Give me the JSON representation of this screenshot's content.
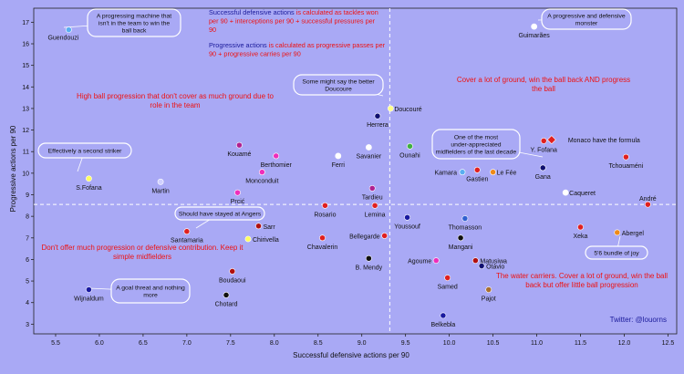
{
  "chart_data": {
    "type": "scatter",
    "title": "",
    "xlabel": "Successful defensive actions per 90",
    "ylabel": "Progressive actions per 90",
    "xlim": [
      5.25,
      12.6
    ],
    "ylim": [
      2.55,
      17.65
    ],
    "xticks": [
      "5.5",
      "6.0",
      "6.5",
      "7.0",
      "7.5",
      "8.0",
      "8.5",
      "9.0",
      "9.5",
      "10.0",
      "10.5",
      "11.0",
      "11.5",
      "12.0",
      "12.5"
    ],
    "yticks": [
      "3",
      "4",
      "5",
      "6",
      "7",
      "8",
      "9",
      "10",
      "11",
      "12",
      "13",
      "14",
      "15",
      "16",
      "17"
    ],
    "reference_lines": {
      "x": 9.32,
      "y": 8.55
    },
    "grid": false,
    "colors": {
      "background": "#a9a9f5",
      "plot_bg": "#a9a9f5",
      "annotation_red": "#ee1111",
      "annotation_navy": "#1a1a9a",
      "marker_edge": "#ffffff"
    },
    "points": [
      {
        "name": "Guendouzi",
        "x": 5.65,
        "y": 16.65,
        "color": "#5aaef0"
      },
      {
        "name": "Guimarães",
        "x": 10.97,
        "y": 16.8,
        "color": "#ffffff"
      },
      {
        "name": "Doucouré",
        "x": 9.33,
        "y": 13.0,
        "color": "#ffff88"
      },
      {
        "name": "Herrera",
        "x": 9.18,
        "y": 12.65,
        "color": "#101070"
      },
      {
        "name": "Kouamé",
        "x": 7.6,
        "y": 11.3,
        "color": "#b02090"
      },
      {
        "name": "Savanier",
        "x": 9.08,
        "y": 11.2,
        "color": "#ffffff"
      },
      {
        "name": "Ounahi",
        "x": 9.55,
        "y": 11.25,
        "color": "#40b040"
      },
      {
        "name": "Monaco have the formula",
        "x": 11.17,
        "y": 11.55,
        "color": "#e02020"
      },
      {
        "name": "Y. Fofana",
        "x": 11.08,
        "y": 11.5,
        "color": "#e02020"
      },
      {
        "name": "Berthomier",
        "x": 8.02,
        "y": 10.8,
        "color": "#ee2ebb"
      },
      {
        "name": "Ferri",
        "x": 8.73,
        "y": 10.8,
        "color": "#ffffff"
      },
      {
        "name": "Tchouaméni",
        "x": 12.02,
        "y": 10.75,
        "color": "#e02020"
      },
      {
        "name": "Monconduit",
        "x": 7.86,
        "y": 10.05,
        "color": "#ee2ebb"
      },
      {
        "name": "Kamara",
        "x": 10.15,
        "y": 10.05,
        "color": "#5aaef0"
      },
      {
        "name": "Gastien",
        "x": 10.32,
        "y": 10.15,
        "color": "#e02020"
      },
      {
        "name": "Le Fée",
        "x": 10.5,
        "y": 10.05,
        "color": "#ee8a1a"
      },
      {
        "name": "Gana",
        "x": 11.07,
        "y": 10.25,
        "color": "#101070"
      },
      {
        "name": "S.Fofana",
        "x": 5.88,
        "y": 9.75,
        "color": "#ffff60"
      },
      {
        "name": "Martin",
        "x": 6.7,
        "y": 9.6,
        "color": "#d0d0ff"
      },
      {
        "name": "Tardieu",
        "x": 9.12,
        "y": 9.3,
        "color": "#b02090"
      },
      {
        "name": "Prcić",
        "x": 7.58,
        "y": 9.1,
        "color": "#ee2ebb"
      },
      {
        "name": "Caqueret",
        "x": 11.33,
        "y": 9.1,
        "color": "#ffffff"
      },
      {
        "name": "André",
        "x": 12.27,
        "y": 8.55,
        "color": "#e02020"
      },
      {
        "name": "Rosario",
        "x": 8.58,
        "y": 8.5,
        "color": "#e02020"
      },
      {
        "name": "Lemina",
        "x": 9.15,
        "y": 8.5,
        "color": "#e02020"
      },
      {
        "name": "Youssouf",
        "x": 9.52,
        "y": 7.95,
        "color": "#1a1aa0"
      },
      {
        "name": "Thomasson",
        "x": 10.18,
        "y": 7.9,
        "color": "#3060d0"
      },
      {
        "name": "Sarr",
        "x": 7.82,
        "y": 7.55,
        "color": "#b01010"
      },
      {
        "name": "Xeka",
        "x": 11.5,
        "y": 7.5,
        "color": "#e02020"
      },
      {
        "name": "Santamaria",
        "x": 7.0,
        "y": 7.3,
        "color": "#e02020"
      },
      {
        "name": "Abergel",
        "x": 11.92,
        "y": 7.25,
        "color": "#ee8a1a"
      },
      {
        "name": "Bellegarde",
        "x": 9.26,
        "y": 7.1,
        "color": "#e02020"
      },
      {
        "name": "Chirivella",
        "x": 7.7,
        "y": 6.95,
        "color": "#ffff60"
      },
      {
        "name": "Chavalerin",
        "x": 8.55,
        "y": 7.0,
        "color": "#e02020"
      },
      {
        "name": "Mangani",
        "x": 10.13,
        "y": 7.0,
        "color": "#101010"
      },
      {
        "name": "B. Mendy",
        "x": 9.08,
        "y": 6.05,
        "color": "#101010"
      },
      {
        "name": "Agoume",
        "x": 9.85,
        "y": 5.95,
        "color": "#ee2ebb"
      },
      {
        "name": "Matusiwa",
        "x": 10.3,
        "y": 5.95,
        "color": "#b01010"
      },
      {
        "name": "Otávio",
        "x": 10.37,
        "y": 5.7,
        "color": "#101070"
      },
      {
        "name": "Boudaoui",
        "x": 7.52,
        "y": 5.45,
        "color": "#b01010"
      },
      {
        "name": "Samed",
        "x": 9.98,
        "y": 5.15,
        "color": "#e02020"
      },
      {
        "name": "Pajot",
        "x": 10.45,
        "y": 4.6,
        "color": "#a87030"
      },
      {
        "name": "Wijnaldum",
        "x": 5.88,
        "y": 4.6,
        "color": "#1a1aa0"
      },
      {
        "name": "Chotard",
        "x": 7.45,
        "y": 4.35,
        "color": "#101010"
      },
      {
        "name": "Belkebla",
        "x": 9.93,
        "y": 3.4,
        "color": "#1a1aa0"
      }
    ],
    "annotations": {
      "definitions": [
        {
          "lead": "Successful defensive actions",
          "rest": " is calculated as tackles won per 90 + interceptions per 90 + successful pressures per 90"
        },
        {
          "lead": "Progressive actions",
          "rest": " is calculated as progressive passes per 90 + progressive carries per 90"
        }
      ],
      "quadrants": [
        {
          "text": "High ball progression that don't cover as much ground due to role in the team"
        },
        {
          "text": "Cover a lot of ground, win the ball back AND progress the ball"
        },
        {
          "text": "Don't offer much progression or defensive contribution. Keep it simple midfielders"
        },
        {
          "text": "The water carriers. Cover a lot of ground, win the ball back but offer little ball progression"
        }
      ],
      "bubbles": [
        {
          "text": "A progressing machine that isn't in the team to win the ball back"
        },
        {
          "text": "A progressive and defensive monster"
        },
        {
          "text": "Some might say the better Doucoure"
        },
        {
          "text": "Effectively a second striker"
        },
        {
          "text": "One of the most under-appreciated midfielders of the last decade"
        },
        {
          "text": "Should have stayed at Angers"
        },
        {
          "text": "5'6 bundle of joy"
        },
        {
          "text": "A goal threat and nothing more"
        }
      ],
      "credit": "Twitter: @louorns"
    }
  }
}
